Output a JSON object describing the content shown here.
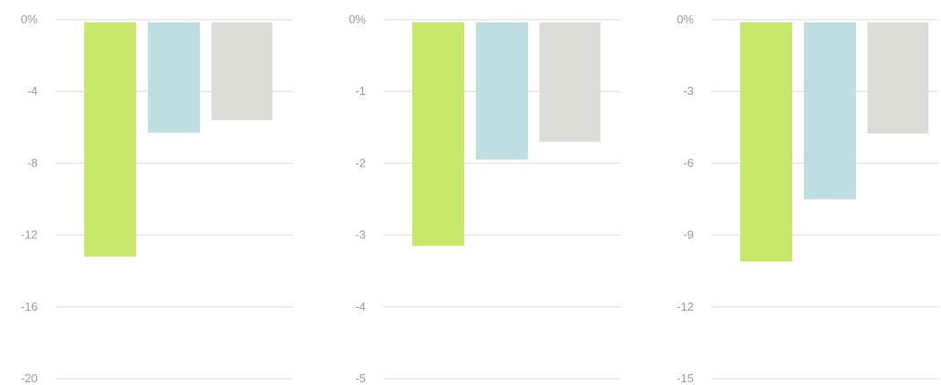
{
  "chart_data": [
    {
      "type": "bar",
      "categories": [
        "",
        "",
        ""
      ],
      "values": [
        -13.2,
        -6.3,
        -5.6
      ],
      "colors": [
        "#c8e86b",
        "#bfdee2",
        "#dcdcd6"
      ],
      "yticks": [
        "0%",
        "-4",
        "-8",
        "-12",
        "-16",
        "-20"
      ],
      "ylim": [
        -20,
        0
      ],
      "grid": true,
      "xlabel": "",
      "ylabel": ""
    },
    {
      "type": "bar",
      "categories": [
        "",
        "",
        ""
      ],
      "values": [
        -3.15,
        -1.95,
        -1.7
      ],
      "colors": [
        "#c8e86b",
        "#bfdee2",
        "#dcdcd6"
      ],
      "yticks": [
        "0%",
        "-1",
        "-2",
        "-3",
        "-4",
        "-5"
      ],
      "ylim": [
        -5,
        0
      ],
      "grid": true,
      "xlabel": "",
      "ylabel": ""
    },
    {
      "type": "bar",
      "categories": [
        "",
        "",
        ""
      ],
      "values": [
        -10.1,
        -7.5,
        -4.75
      ],
      "colors": [
        "#c8e86b",
        "#bfdee2",
        "#dcdcd6"
      ],
      "yticks": [
        "0%",
        "-3",
        "-6",
        "-9",
        "-12",
        "-15"
      ],
      "ylim": [
        -15,
        0
      ],
      "grid": true,
      "xlabel": "",
      "ylabel": ""
    }
  ]
}
